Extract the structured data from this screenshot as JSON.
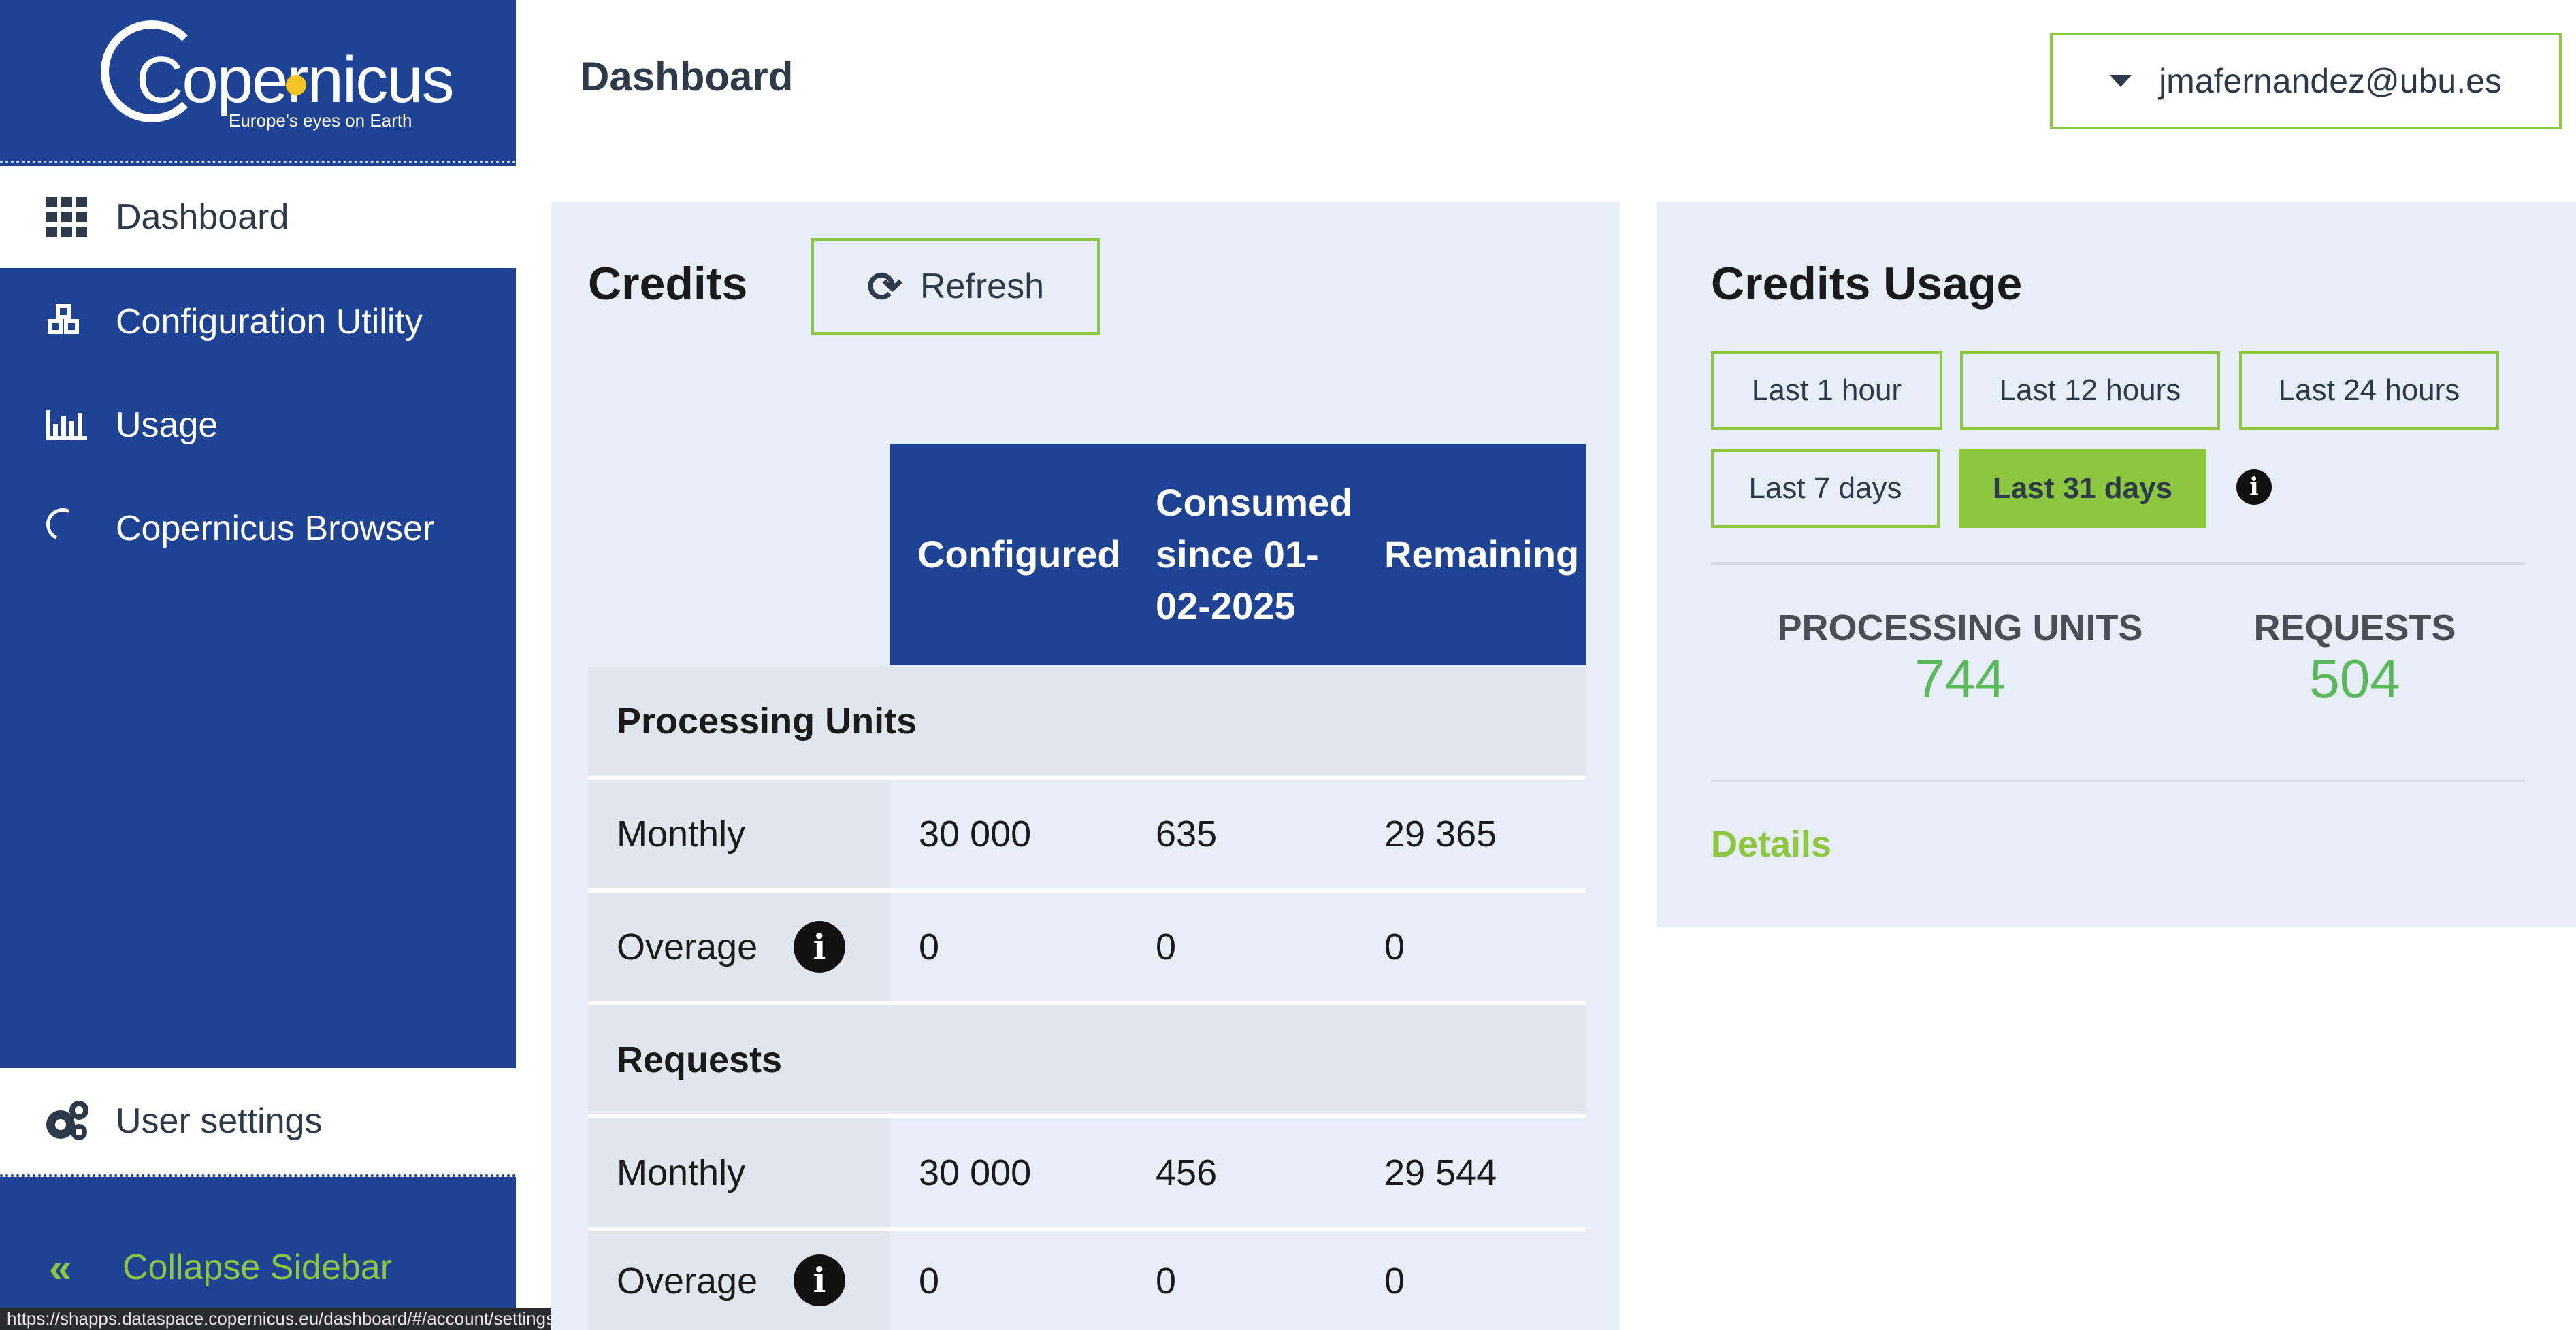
{
  "sidebar": {
    "logo": {
      "name": "Copernicus",
      "tagline": "Europe's eyes on Earth"
    },
    "items": [
      {
        "label": "Dashboard",
        "icon": "grid-icon",
        "active": true
      },
      {
        "label": "Configuration Utility",
        "icon": "cubes-icon"
      },
      {
        "label": "Usage",
        "icon": "bar-chart-icon"
      },
      {
        "label": "Copernicus Browser",
        "icon": "loading-arc-icon"
      }
    ],
    "user_settings": {
      "label": "User settings",
      "icon": "gears-icon"
    },
    "collapse": {
      "label": "Collapse Sidebar",
      "icon": "double-chevron-left-icon"
    }
  },
  "header": {
    "title": "Dashboard",
    "user_email": "jmafernandez@ubu.es"
  },
  "credits": {
    "title": "Credits",
    "refresh_label": "Refresh",
    "columns": [
      "Configured",
      "Consumed since 01-02-2025",
      "Remaining"
    ],
    "sections": [
      {
        "name": "Processing Units",
        "rows": [
          {
            "label": "Monthly",
            "configured": "30 000",
            "consumed": "635",
            "remaining": "29 365"
          },
          {
            "label": "Overage",
            "configured": "0",
            "consumed": "0",
            "remaining": "0"
          }
        ]
      },
      {
        "name": "Requests",
        "rows": [
          {
            "label": "Monthly",
            "configured": "30 000",
            "consumed": "456",
            "remaining": "29 544"
          },
          {
            "label": "Overage",
            "configured": "0",
            "consumed": "0",
            "remaining": "0"
          }
        ]
      }
    ]
  },
  "usage": {
    "title": "Credits Usage",
    "ranges": [
      "Last 1 hour",
      "Last 12 hours",
      "Last 24 hours",
      "Last 7 days",
      "Last 31 days"
    ],
    "selected_range": "Last 31 days",
    "stats": [
      {
        "label": "PROCESSING UNITS",
        "value": "744"
      },
      {
        "label": "REQUESTS",
        "value": "504"
      }
    ],
    "details_label": "Details"
  },
  "status_bar": {
    "url": "https://shapps.dataspace.copernicus.eu/dashboard/#/account/settings"
  },
  "colors": {
    "sidebar": "#1f4394",
    "accent": "#8dc63f",
    "panel": "#e8eef8",
    "value": "#5cb85c"
  }
}
